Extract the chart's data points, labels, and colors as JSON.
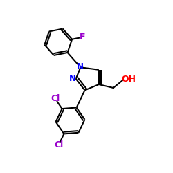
{
  "background_color": "#ffffff",
  "bond_color": "#000000",
  "N_color": "#0000ff",
  "Cl_color": "#9900cc",
  "F_color": "#9900cc",
  "O_color": "#ff0000",
  "bond_width": 1.5,
  "figsize": [
    2.5,
    2.5
  ],
  "dpi": 100,
  "xlim": [
    0,
    10
  ],
  "ylim": [
    0,
    10
  ]
}
